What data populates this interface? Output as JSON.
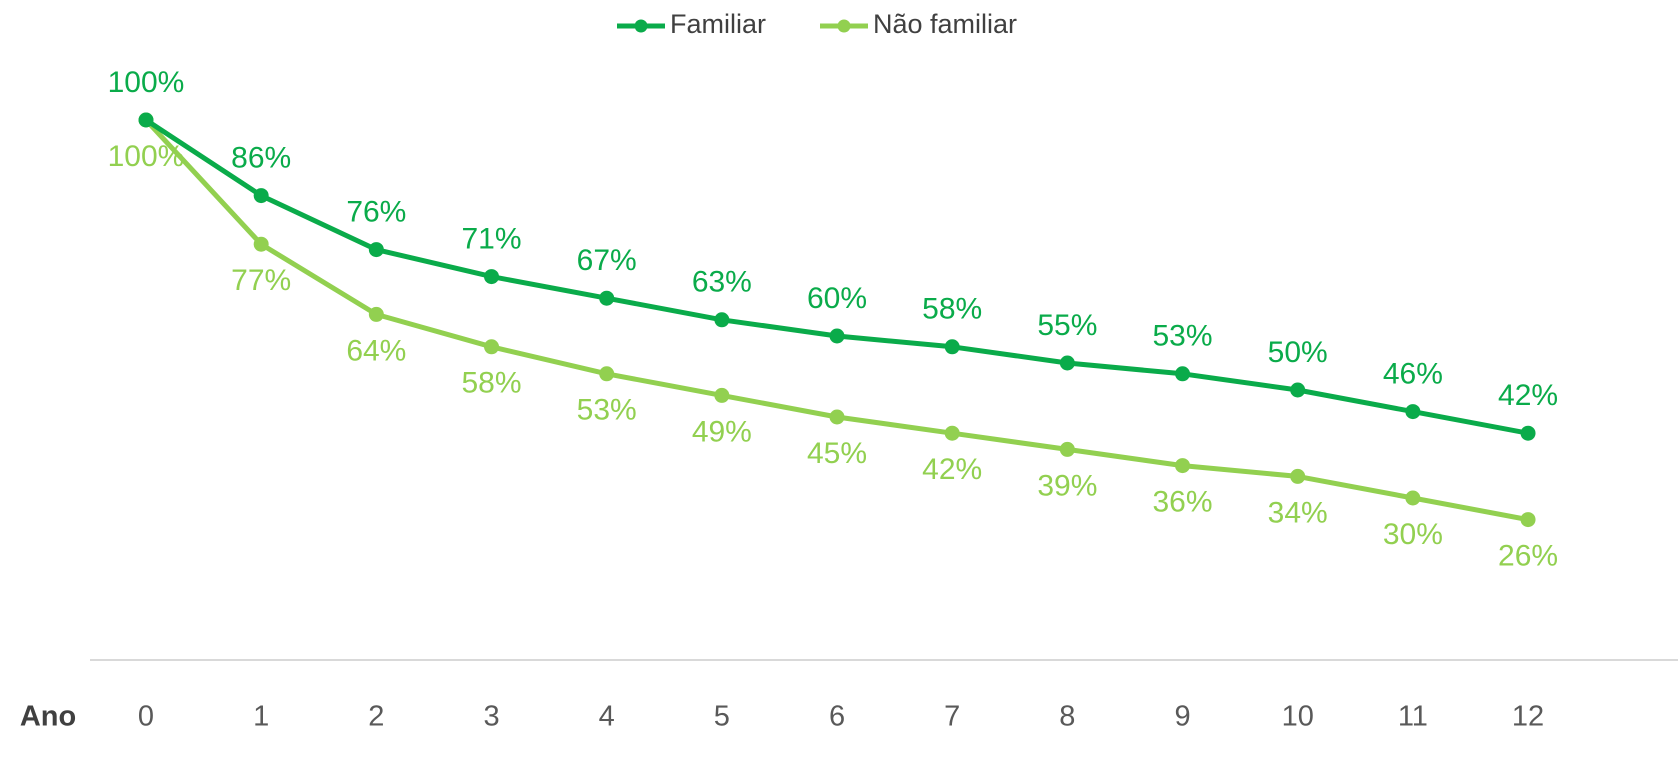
{
  "chart_data": {
    "type": "line",
    "x_label": "Ano",
    "categories": [
      "0",
      "1",
      "2",
      "3",
      "4",
      "5",
      "6",
      "7",
      "8",
      "9",
      "10",
      "11",
      "12"
    ],
    "series": [
      {
        "name": "Familiar",
        "color": "#0aab4a",
        "values": [
          100,
          86,
          76,
          71,
          67,
          63,
          60,
          58,
          55,
          53,
          50,
          46,
          42
        ],
        "value_labels": [
          "100%",
          "86%",
          "76%",
          "71%",
          "67%",
          "63%",
          "60%",
          "58%",
          "55%",
          "53%",
          "50%",
          "46%",
          "42%"
        ]
      },
      {
        "name": "Não familiar",
        "color": "#92d050",
        "values": [
          100,
          77,
          64,
          58,
          53,
          49,
          45,
          42,
          39,
          36,
          34,
          30,
          26
        ],
        "value_labels": [
          "100%",
          "77%",
          "64%",
          "58%",
          "53%",
          "49%",
          "45%",
          "42%",
          "39%",
          "36%",
          "34%",
          "30%",
          "26%"
        ]
      }
    ],
    "ylim": [
      0,
      100
    ],
    "legend": "top"
  }
}
